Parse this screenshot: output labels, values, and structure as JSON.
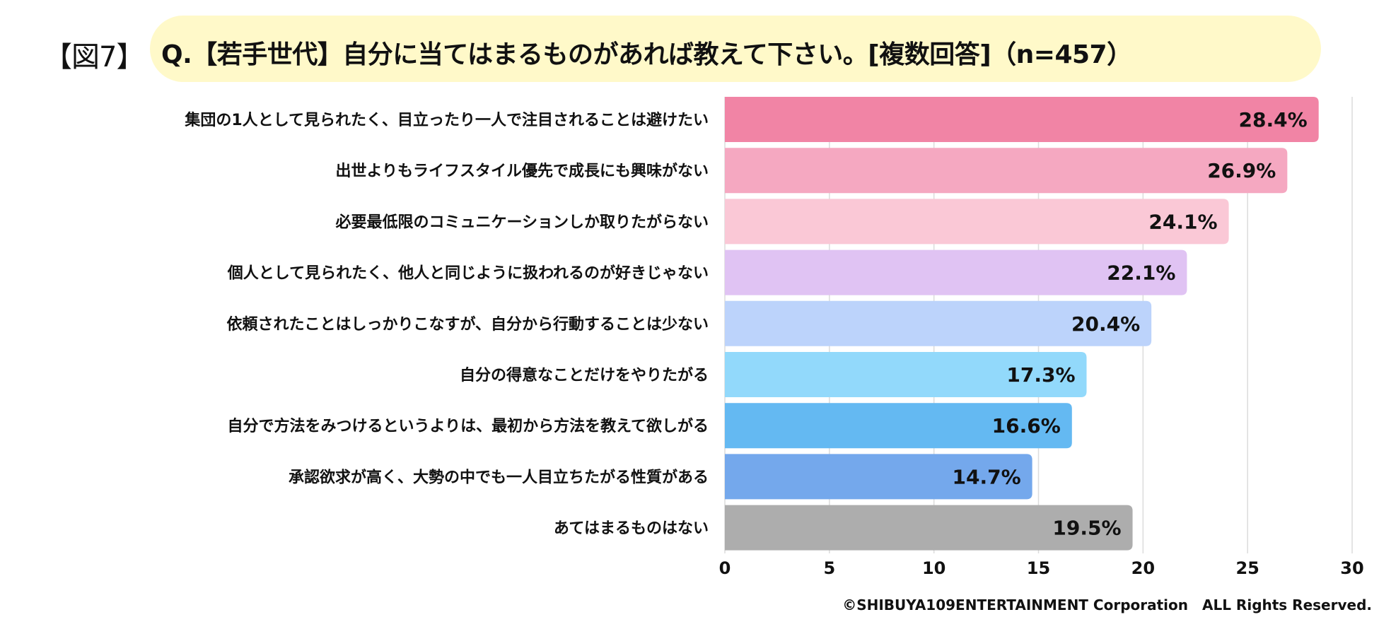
{
  "header": {
    "figure_label": "【図7】",
    "question": "Q.【若手世代】自分に当てはまるものがあれば教えて下さい。[複数回答]（n=457）"
  },
  "footer": {
    "copyright": "©SHIBUYA109ENTERTAINMENT Corporation　ALL Rights Reserved."
  },
  "chart_data": {
    "type": "bar",
    "orientation": "horizontal",
    "categories": [
      "集団の1人として見られたく、目立ったり一人で注目されることは避けたい",
      "出世よりもライフスタイル優先で成長にも興味がない",
      "必要最低限のコミュニケーションしか取りたがらない",
      "個人として見られたく、他人と同じように扱われるのが好きじゃない",
      "依頼されたことはしっかりこなすが、自分から行動することは少ない",
      "自分の得意なことだけをやりたがる",
      "自分で方法をみつけるというよりは、最初から方法を教えて欲しがる",
      "承認欲求が高く、大勢の中でも一人目立ちたがる性質がある",
      "あてはまるものはない"
    ],
    "values": [
      28.4,
      26.9,
      24.1,
      22.1,
      20.4,
      17.3,
      16.6,
      14.7,
      19.5
    ],
    "value_labels": [
      "28.4%",
      "26.9%",
      "24.1%",
      "22.1%",
      "20.4%",
      "17.3%",
      "16.6%",
      "14.7%",
      "19.5%"
    ],
    "colors": [
      "#f184a5",
      "#f5a8c1",
      "#fac8d6",
      "#e0c3f3",
      "#bcd3fb",
      "#92d9fb",
      "#64b9f2",
      "#74a8ec",
      "#adadad"
    ],
    "xlim": [
      0,
      30
    ],
    "xticks": [
      0,
      5,
      10,
      15,
      20,
      25,
      30
    ],
    "xtick_labels": [
      "0",
      "5",
      "10",
      "15",
      "20",
      "25",
      "30"
    ],
    "grid": true,
    "title": "",
    "xlabel": "",
    "ylabel": ""
  }
}
